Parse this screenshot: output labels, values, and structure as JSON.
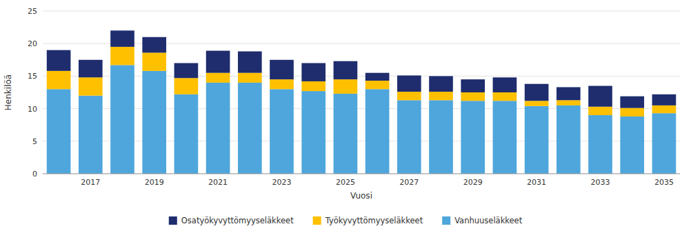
{
  "chart_data": {
    "type": "bar",
    "stacked": true,
    "grid": true,
    "legend": "bottom",
    "x_label": "Vuosi",
    "y_label": "Henkilöä",
    "categories": [
      null,
      "2017",
      null,
      "2019",
      null,
      "2021",
      null,
      "2023",
      null,
      "2025",
      null,
      "2027",
      null,
      "2029",
      null,
      "2031",
      null,
      "2033",
      null,
      "2035"
    ],
    "series": [
      {
        "name": "Vanhuuseläkkeet",
        "color": "#4EA6DC",
        "values": [
          13.0,
          12.0,
          16.7,
          15.8,
          12.2,
          14.0,
          14.0,
          13.0,
          12.7,
          12.3,
          13.0,
          11.3,
          11.3,
          11.2,
          11.2,
          10.4,
          10.5,
          9.0,
          8.8,
          9.3
        ]
      },
      {
        "name": "Työkyvyttömyyseläkkeet",
        "color": "#FFC000",
        "values": [
          2.8,
          2.8,
          2.8,
          2.8,
          2.5,
          1.5,
          1.5,
          1.5,
          1.5,
          2.2,
          1.3,
          1.3,
          1.3,
          1.3,
          1.3,
          0.8,
          0.8,
          1.3,
          1.3,
          1.2
        ]
      },
      {
        "name": "Osatyökyvyttömyyseläkkeet",
        "color": "#1F2D6E",
        "values": [
          3.2,
          2.7,
          2.5,
          2.4,
          2.3,
          3.4,
          3.3,
          3.0,
          2.8,
          2.8,
          1.2,
          2.5,
          2.4,
          2.0,
          2.3,
          2.6,
          2.0,
          3.2,
          1.8,
          1.7
        ]
      }
    ],
    "ylim": [
      0,
      25
    ],
    "yticks": [
      0,
      5,
      10,
      15,
      20,
      25
    ]
  }
}
